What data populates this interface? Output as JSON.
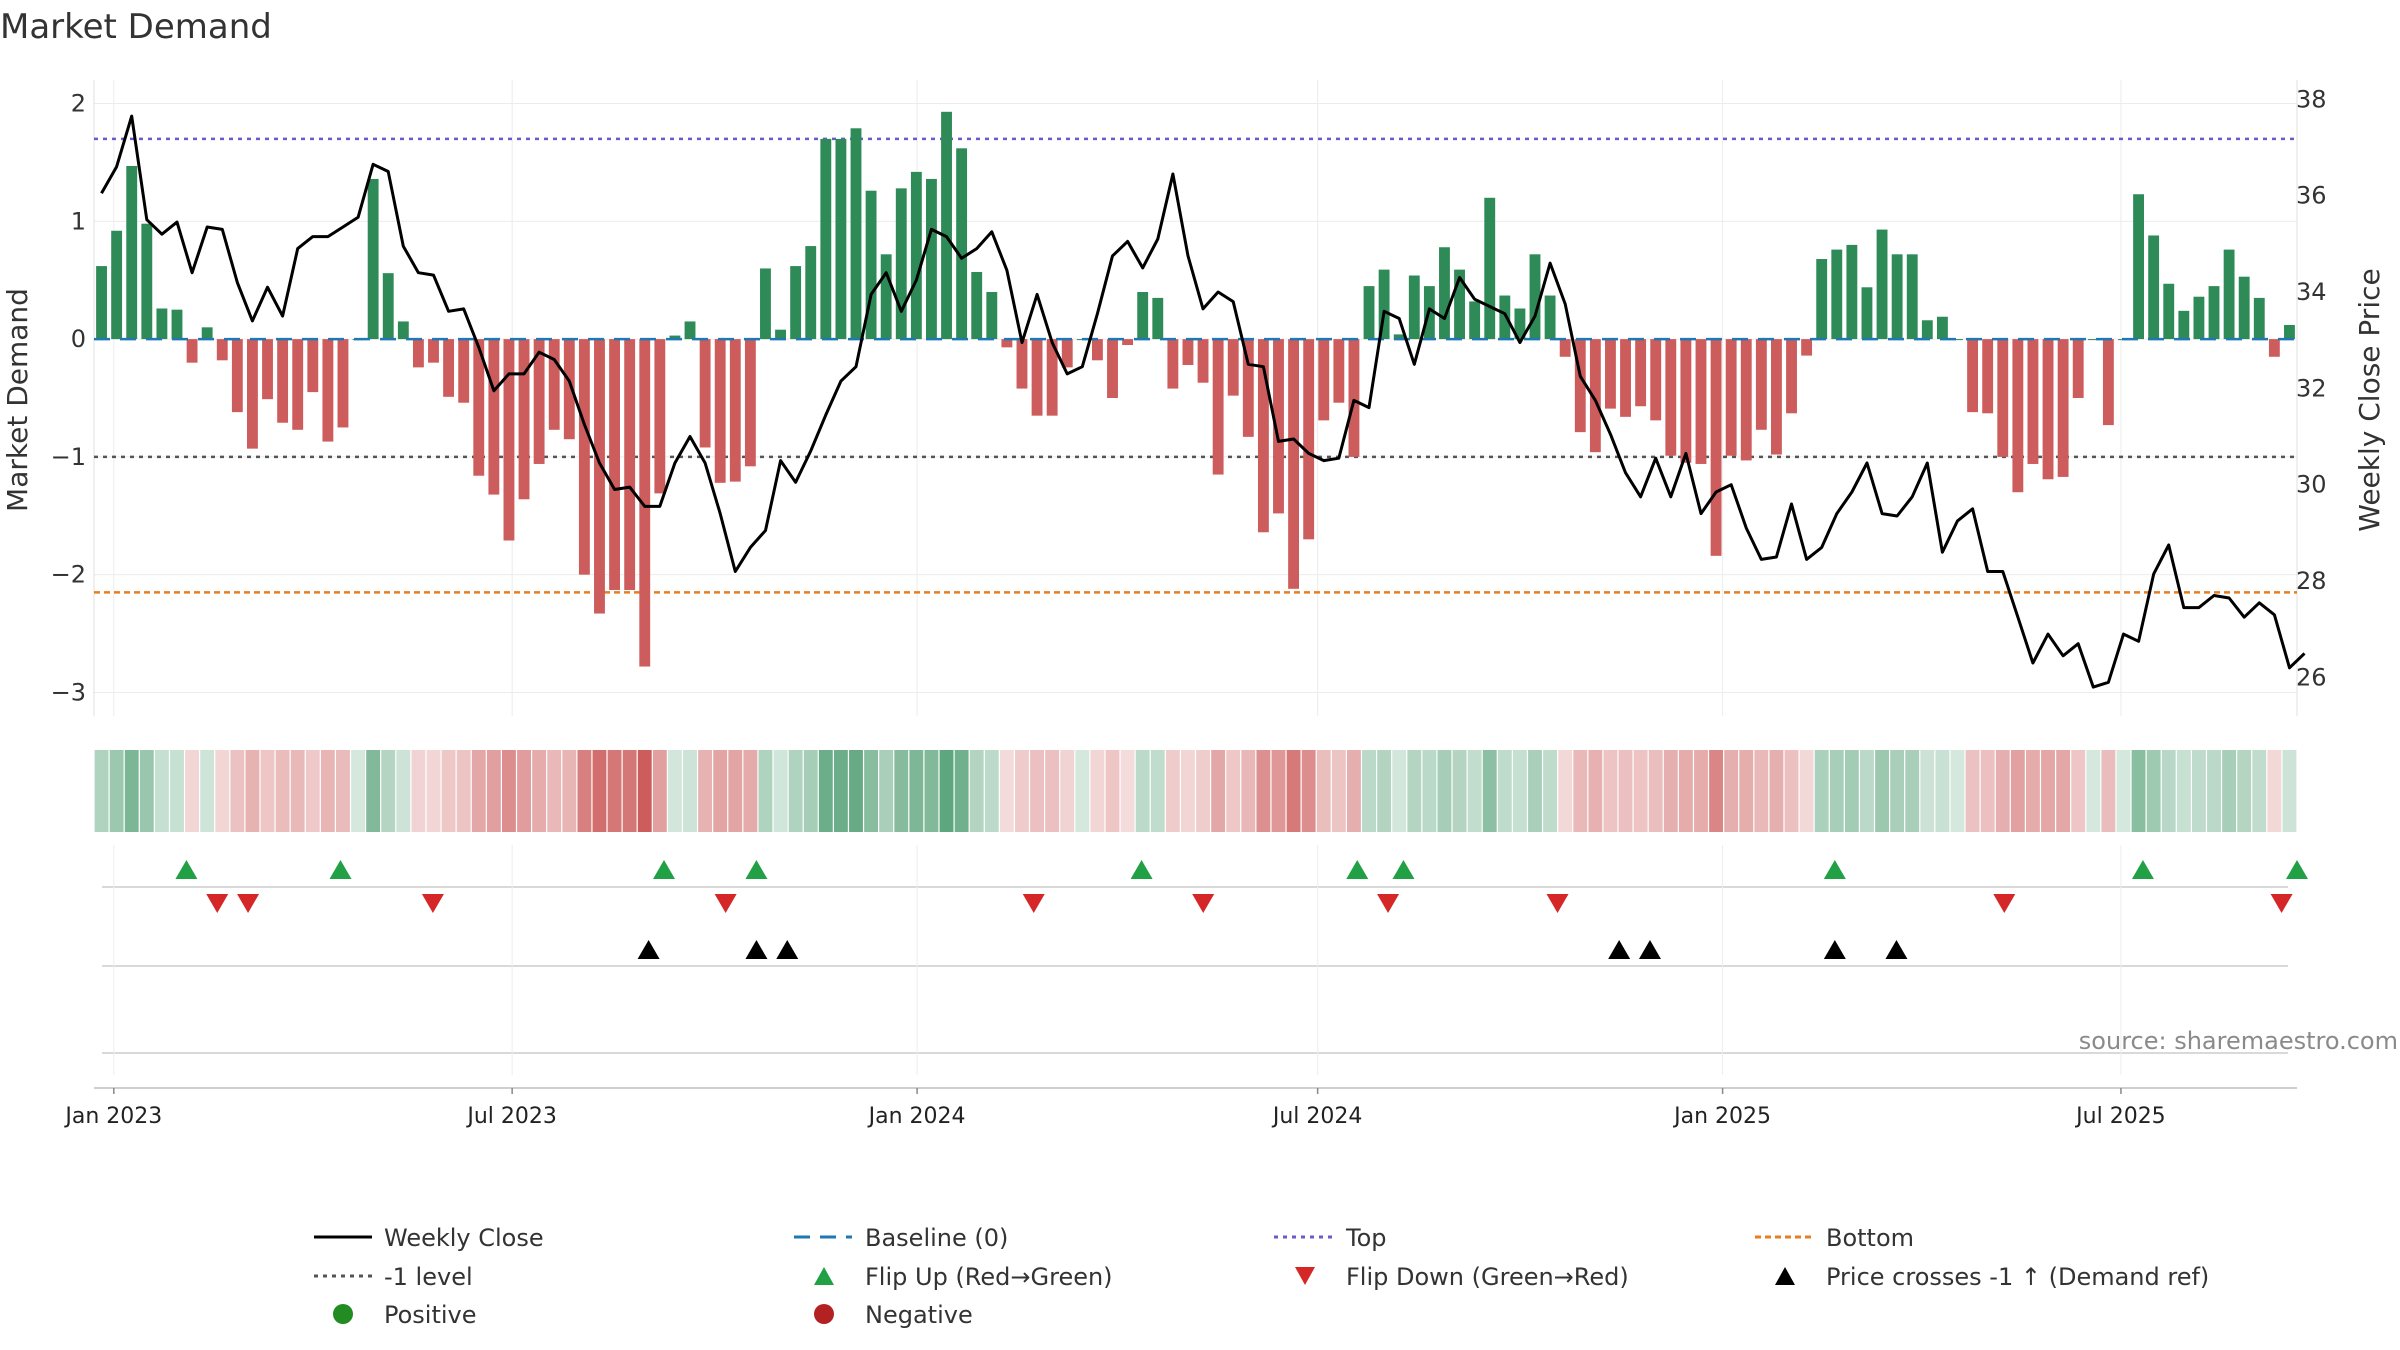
{
  "chart_data": {
    "type": "bar+line",
    "title": "Market Demand",
    "ylabel_left": "Market Demand",
    "ylabel_right": "Weekly Close Price",
    "ylim_left": [
      -3.2,
      2.2
    ],
    "ylim_right": [
      25.2,
      38.4
    ],
    "left_ticks": [
      2,
      1,
      0,
      -1,
      -2,
      -3
    ],
    "left_tick_labels": [
      "2",
      "1",
      "0",
      "−1",
      "−2",
      "−3"
    ],
    "right_ticks": [
      38,
      36,
      34,
      32,
      30,
      28,
      26
    ],
    "right_tick_labels": [
      "38",
      "36",
      "34",
      "32",
      "30",
      "28",
      "26"
    ],
    "x_axis": {
      "start": "2022-12-23",
      "end": "2025-09-19",
      "tick_dates": [
        "2023-01-01",
        "2023-07-01",
        "2024-01-01",
        "2024-07-01",
        "2025-01-01",
        "2025-07-01"
      ],
      "tick_labels": [
        "Jan 2023",
        "Jul 2023",
        "Jan 2024",
        "Jul 2024",
        "Jan 2025",
        "Jul 2025"
      ]
    },
    "reference_lines": {
      "top": 1.7,
      "minus_one": -1.0,
      "bottom": -2.15,
      "baseline": 0
    },
    "demand": [
      0.62,
      0.92,
      1.47,
      0.98,
      0.26,
      0.25,
      -0.2,
      0.1,
      -0.18,
      -0.62,
      -0.93,
      -0.51,
      -0.71,
      -0.77,
      -0.45,
      -0.87,
      -0.75,
      0.0,
      1.36,
      0.56,
      0.15,
      -0.24,
      -0.2,
      -0.49,
      -0.54,
      -1.16,
      -1.32,
      -1.71,
      -1.36,
      -1.06,
      -0.77,
      -0.85,
      -2.0,
      -2.33,
      -2.13,
      -2.13,
      -2.78,
      -1.31,
      0.03,
      0.15,
      -0.92,
      -1.22,
      -1.21,
      -1.08,
      0.6,
      0.08,
      0.62,
      0.79,
      1.7,
      1.7,
      1.79,
      1.26,
      0.72,
      1.28,
      1.42,
      1.36,
      1.93,
      1.62,
      0.57,
      0.4,
      -0.07,
      -0.42,
      -0.65,
      -0.65,
      -0.24,
      0.0,
      -0.18,
      -0.5,
      -0.05,
      0.4,
      0.35,
      -0.42,
      -0.22,
      -0.37,
      -1.15,
      -0.48,
      -0.83,
      -1.64,
      -1.48,
      -2.12,
      -1.7,
      -0.69,
      -0.54,
      -1.0,
      0.45,
      0.59,
      0.04,
      0.54,
      0.45,
      0.78,
      0.59,
      0.32,
      1.2,
      0.37,
      0.26,
      0.72,
      0.37,
      -0.15,
      -0.79,
      -0.96,
      -0.59,
      -0.66,
      -0.57,
      -0.69,
      -0.99,
      -1.05,
      -1.06,
      -1.84,
      -0.99,
      -1.03,
      -0.77,
      -0.98,
      -0.63,
      -0.14,
      0.68,
      0.76,
      0.8,
      0.44,
      0.93,
      0.72,
      0.72,
      0.16,
      0.19,
      0.0,
      -0.62,
      -0.63,
      -1.0,
      -1.3,
      -1.06,
      -1.19,
      -1.17,
      -0.5,
      0.0,
      -0.73,
      0.0,
      1.23,
      0.88,
      0.47,
      0.24,
      0.36,
      0.45,
      0.76,
      0.53,
      0.35,
      -0.15,
      0.12
    ],
    "weekly_close": [
      36.05,
      36.6,
      37.65,
      35.5,
      35.2,
      35.45,
      34.4,
      35.35,
      35.3,
      34.2,
      33.4,
      34.1,
      33.5,
      34.9,
      35.15,
      35.15,
      35.35,
      35.55,
      36.65,
      36.5,
      34.95,
      34.4,
      34.35,
      33.6,
      33.65,
      32.85,
      31.95,
      32.3,
      32.3,
      32.75,
      32.6,
      32.15,
      31.25,
      30.45,
      29.9,
      29.95,
      29.55,
      29.55,
      30.45,
      31.0,
      30.45,
      29.4,
      28.2,
      28.7,
      29.05,
      30.5,
      30.05,
      30.7,
      31.45,
      32.15,
      32.45,
      33.95,
      34.4,
      33.6,
      34.25,
      35.3,
      35.15,
      34.7,
      34.9,
      35.25,
      34.45,
      32.95,
      33.95,
      32.95,
      32.3,
      32.45,
      33.55,
      34.75,
      35.05,
      34.5,
      35.1,
      36.45,
      34.75,
      33.65,
      34.0,
      33.8,
      32.5,
      32.45,
      30.9,
      30.95,
      30.65,
      30.5,
      30.55,
      31.75,
      31.6,
      33.6,
      33.45,
      32.5,
      33.65,
      33.45,
      34.3,
      33.85,
      33.7,
      33.55,
      32.95,
      33.5,
      34.6,
      33.75,
      32.25,
      31.75,
      31.05,
      30.25,
      29.75,
      30.55,
      29.75,
      30.65,
      29.4,
      29.85,
      30.0,
      29.1,
      28.45,
      28.5,
      29.6,
      28.45,
      28.7,
      29.4,
      29.85,
      30.45,
      29.4,
      29.35,
      29.75,
      30.45,
      28.6,
      29.25,
      29.5,
      28.2,
      28.2,
      27.25,
      26.3,
      26.9,
      26.45,
      26.7,
      25.8,
      25.9,
      26.9,
      26.75,
      28.15,
      28.75,
      27.45,
      27.45,
      27.7,
      27.65,
      27.25,
      27.55,
      27.3,
      26.2,
      26.5
    ],
    "flip_up": [
      "2023-02-03",
      "2023-04-14",
      "2023-09-08",
      "2023-10-20",
      "2024-04-12",
      "2024-07-19",
      "2024-08-09",
      "2025-02-21",
      "2025-07-11",
      "2025-09-19"
    ],
    "flip_down": [
      "2023-02-17",
      "2023-03-03",
      "2023-05-26",
      "2023-10-06",
      "2024-02-23",
      "2024-05-10",
      "2024-08-02",
      "2024-10-18",
      "2025-05-09",
      "2025-09-12"
    ],
    "price_crosses_minus1_up": [
      "2023-09-01",
      "2023-10-20",
      "2023-11-03",
      "2024-11-15",
      "2024-11-29",
      "2025-02-21",
      "2025-03-21"
    ],
    "source": "source: sharemaestro.com"
  },
  "colors": {
    "positive": "#2e8b57",
    "negative": "#cd5c5c",
    "close": "#000000",
    "baseline": "#1f77b4",
    "top": "#6a5acd",
    "minus_one": "#555555",
    "bottom": "#e67e22",
    "flip_up": "#22a045",
    "flip_down": "#d62728",
    "cross": "#000000",
    "legend_positive": "#228b22",
    "legend_negative": "#b22222"
  },
  "legend": {
    "weekly_close": "Weekly Close",
    "baseline": "Baseline (0)",
    "top": "Top",
    "bottom": "Bottom",
    "minus_one": "-1 level",
    "flip_up": "Flip Up (Red→Green)",
    "flip_down": "Flip Down (Green→Red)",
    "cross": "Price crosses -1 ↑ (Demand ref)",
    "positive": "Positive",
    "negative": "Negative"
  }
}
